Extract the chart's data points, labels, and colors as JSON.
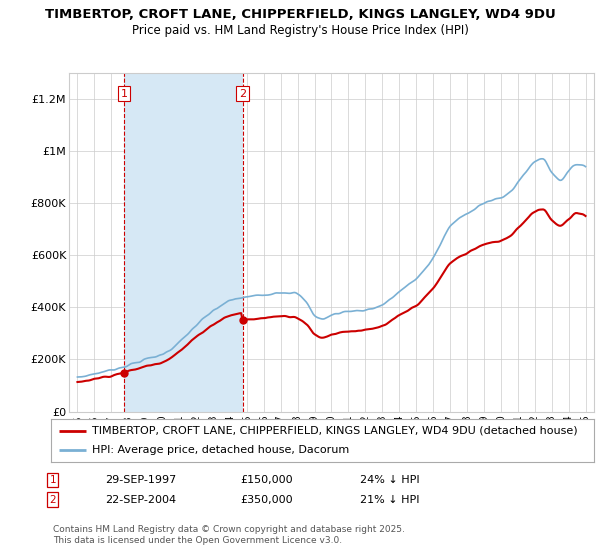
{
  "title": "TIMBERTOP, CROFT LANE, CHIPPERFIELD, KINGS LANGLEY, WD4 9DU",
  "subtitle": "Price paid vs. HM Land Registry's House Price Index (HPI)",
  "ylabel_ticks": [
    0,
    200000,
    400000,
    600000,
    800000,
    1000000,
    1200000
  ],
  "ylabel_labels": [
    "£0",
    "£200K",
    "£400K",
    "£600K",
    "£800K",
    "£1M",
    "£1.2M"
  ],
  "ylim": [
    0,
    1300000
  ],
  "xlim_start": 1994.5,
  "xlim_end": 2025.5,
  "sale1_year": 1997.75,
  "sale1_price": 150000,
  "sale2_year": 2004.75,
  "sale2_price": 350000,
  "red_color": "#cc0000",
  "blue_color": "#7ab0d4",
  "blue_fill_color": "#d6e8f5",
  "vline_color": "#cc0000",
  "grid_color": "#cccccc",
  "bg_color": "#ffffff",
  "legend_items": [
    "TIMBERTOP, CROFT LANE, CHIPPERFIELD, KINGS LANGLEY, WD4 9DU (detached house)",
    "HPI: Average price, detached house, Dacorum"
  ],
  "table_rows": [
    {
      "num": "1",
      "date": "29-SEP-1997",
      "price": "£150,000",
      "hpi": "24% ↓ HPI"
    },
    {
      "num": "2",
      "date": "22-SEP-2004",
      "price": "£350,000",
      "hpi": "21% ↓ HPI"
    }
  ],
  "footnote": "Contains HM Land Registry data © Crown copyright and database right 2025.\nThis data is licensed under the Open Government Licence v3.0.",
  "title_fontsize": 9.5,
  "subtitle_fontsize": 8.5,
  "axis_fontsize": 8,
  "legend_fontsize": 8,
  "table_fontsize": 8
}
